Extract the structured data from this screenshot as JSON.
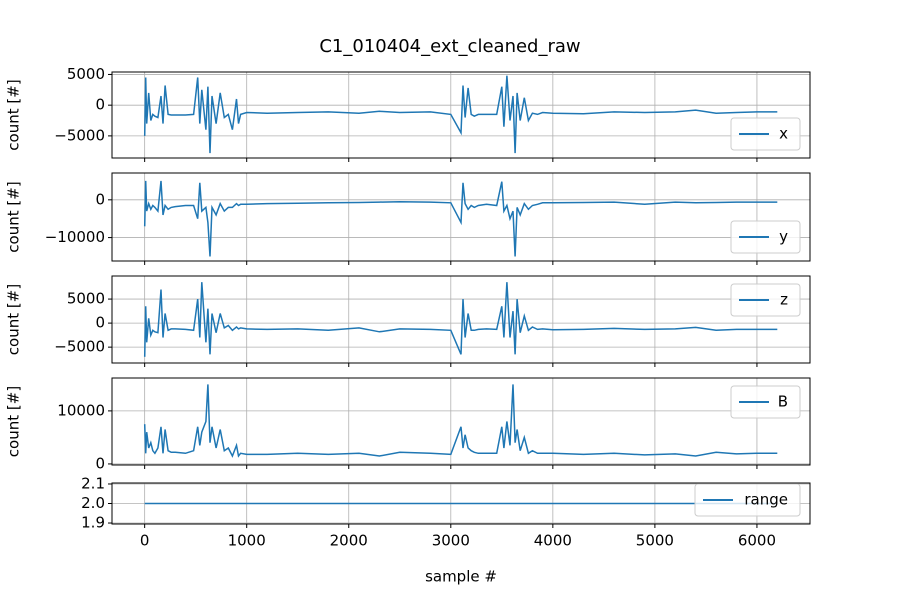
{
  "title": "C1_010404_ext_cleaned_raw",
  "xlabel": "sample #",
  "chart_data": [
    {
      "type": "line",
      "ylabel": "count [#]",
      "legend": "lower right",
      "grid": true,
      "xlim": [
        -320,
        6520
      ],
      "xticks": [
        0,
        1000,
        2000,
        3000,
        4000,
        5000,
        6000
      ],
      "ylim": [
        -8600,
        5400
      ],
      "yticks": [
        {
          "value": -5000,
          "label": "−5000"
        },
        0,
        5000
      ],
      "x": [
        0,
        10,
        20,
        40,
        60,
        80,
        100,
        130,
        160,
        180,
        200,
        230,
        260,
        300,
        400,
        480,
        520,
        540,
        560,
        600,
        620,
        640,
        660,
        700,
        740,
        780,
        820,
        860,
        900,
        920,
        940,
        1000,
        1200,
        1500,
        1800,
        2100,
        2300,
        2500,
        2800,
        3000,
        3100,
        3120,
        3140,
        3170,
        3200,
        3230,
        3270,
        3350,
        3450,
        3500,
        3520,
        3550,
        3580,
        3610,
        3630,
        3650,
        3680,
        3720,
        3760,
        3800,
        3850,
        3900,
        4000,
        4300,
        4600,
        4900,
        5200,
        5400,
        5600,
        5800,
        6000,
        6200
      ],
      "series": [
        {
          "name": "x",
          "color": "#1f77b4",
          "values": [
            -5000,
            4500,
            -3000,
            2000,
            -2500,
            -1500,
            -1800,
            -2000,
            1500,
            -3000,
            3200,
            -1500,
            -1600,
            -1600,
            -1600,
            -1500,
            4500,
            -3000,
            2500,
            -4000,
            3000,
            -7800,
            1500,
            -3000,
            2000,
            -2000,
            -1500,
            -4000,
            1000,
            -3000,
            -1500,
            -1200,
            -1300,
            -1200,
            -1100,
            -1300,
            -1000,
            -1200,
            -1100,
            -1500,
            -4500,
            3200,
            -2000,
            2800,
            -1500,
            -1800,
            -1500,
            -1500,
            -1500,
            3000,
            -3500,
            4800,
            -2500,
            1500,
            -7800,
            2000,
            -2500,
            1200,
            -2500,
            -1300,
            -1500,
            -1200,
            -1300,
            -1400,
            -1100,
            -1200,
            -1100,
            -800,
            -1300,
            -1200,
            -1100,
            -1100
          ]
        }
      ]
    },
    {
      "type": "line",
      "ylabel": "count [#]",
      "legend": "lower right",
      "grid": true,
      "xlim": [
        -320,
        6520
      ],
      "xticks": [
        0,
        1000,
        2000,
        3000,
        4000,
        5000,
        6000
      ],
      "ylim": [
        -16200,
        7100
      ],
      "yticks": [
        {
          "value": -10000,
          "label": "−10000"
        },
        0
      ],
      "x": [
        0,
        10,
        20,
        40,
        60,
        80,
        100,
        130,
        160,
        180,
        200,
        230,
        260,
        300,
        400,
        480,
        520,
        540,
        560,
        600,
        620,
        640,
        660,
        700,
        740,
        780,
        820,
        860,
        900,
        920,
        940,
        1000,
        1200,
        1500,
        1800,
        2100,
        2300,
        2500,
        2800,
        3000,
        3100,
        3120,
        3140,
        3170,
        3200,
        3230,
        3270,
        3350,
        3450,
        3500,
        3520,
        3550,
        3580,
        3610,
        3630,
        3650,
        3680,
        3720,
        3760,
        3800,
        3850,
        3900,
        4000,
        4300,
        4600,
        4900,
        5200,
        5400,
        5600,
        5800,
        6000,
        6200
      ],
      "series": [
        {
          "name": "y",
          "color": "#1f77b4",
          "values": [
            -7000,
            5000,
            -3000,
            -1000,
            -2500,
            -1500,
            -2000,
            -3000,
            5000,
            -4000,
            -1500,
            -2500,
            -2000,
            -1800,
            -1500,
            -1500,
            -5000,
            4500,
            -3000,
            -2000,
            -6000,
            -15000,
            -2000,
            -4000,
            -1000,
            -3000,
            -2000,
            -2000,
            -1000,
            -1500,
            -1200,
            -1200,
            -1000,
            -900,
            -800,
            -700,
            -600,
            -500,
            -600,
            -800,
            -6000,
            4500,
            -1000,
            -2500,
            -1500,
            -2000,
            -1500,
            -1200,
            -1500,
            4800,
            -3000,
            -1500,
            -5000,
            -3000,
            -15000,
            -2000,
            -4000,
            -1000,
            -2500,
            -1500,
            -1200,
            -800,
            -800,
            -700,
            -600,
            -1200,
            -600,
            -800,
            -700,
            -600,
            -600,
            -600
          ]
        }
      ]
    },
    {
      "type": "line",
      "ylabel": "count [#]",
      "legend": "upper right",
      "grid": true,
      "xlim": [
        -320,
        6520
      ],
      "xticks": [
        0,
        1000,
        2000,
        3000,
        4000,
        5000,
        6000
      ],
      "ylim": [
        -8300,
        9800
      ],
      "yticks": [
        {
          "value": -5000,
          "label": "−5000"
        },
        0,
        5000
      ],
      "x": [
        0,
        10,
        20,
        40,
        60,
        80,
        100,
        130,
        160,
        180,
        200,
        230,
        260,
        300,
        400,
        480,
        520,
        540,
        560,
        600,
        620,
        640,
        660,
        700,
        740,
        780,
        820,
        860,
        900,
        920,
        940,
        1000,
        1200,
        1500,
        1800,
        2100,
        2300,
        2500,
        2800,
        3000,
        3100,
        3120,
        3140,
        3170,
        3200,
        3230,
        3270,
        3350,
        3450,
        3500,
        3520,
        3550,
        3580,
        3610,
        3630,
        3650,
        3680,
        3720,
        3760,
        3800,
        3850,
        3900,
        4000,
        4300,
        4600,
        4900,
        5200,
        5400,
        5600,
        5800,
        6000,
        6200
      ],
      "series": [
        {
          "name": "z",
          "color": "#1f77b4",
          "values": [
            -7000,
            3500,
            -4000,
            1000,
            -2500,
            -1500,
            -1800,
            -2000,
            7000,
            -3000,
            2000,
            -1500,
            -1200,
            -1200,
            -1300,
            -1500,
            5000,
            -3000,
            8500,
            -4000,
            3000,
            -6500,
            2000,
            -2000,
            2000,
            -1000,
            -500,
            -1500,
            -800,
            -1200,
            -1000,
            -1200,
            -1300,
            -1200,
            -1500,
            -1000,
            -1800,
            -1200,
            -1300,
            -1500,
            -6500,
            5000,
            -3000,
            2000,
            -1500,
            -1500,
            -1300,
            -1200,
            -1300,
            3500,
            -3000,
            8500,
            -3000,
            2500,
            -6500,
            5000,
            -2000,
            1500,
            -1500,
            -800,
            -1300,
            -1200,
            -1400,
            -1300,
            -1100,
            -1300,
            -1200,
            -900,
            -1500,
            -1300,
            -1300,
            -1300
          ]
        }
      ]
    },
    {
      "type": "line",
      "ylabel": "count [#]",
      "legend": "upper right",
      "grid": true,
      "xlim": [
        -320,
        6520
      ],
      "xticks": [
        0,
        1000,
        2000,
        3000,
        4000,
        5000,
        6000
      ],
      "ylim": [
        -200,
        16200
      ],
      "yticks": [
        0,
        10000
      ],
      "x": [
        0,
        10,
        20,
        40,
        60,
        80,
        100,
        130,
        160,
        180,
        200,
        230,
        260,
        300,
        400,
        480,
        520,
        540,
        560,
        600,
        620,
        640,
        660,
        700,
        740,
        780,
        820,
        860,
        900,
        920,
        940,
        1000,
        1200,
        1500,
        1800,
        2100,
        2300,
        2500,
        2800,
        3000,
        3100,
        3120,
        3140,
        3170,
        3200,
        3230,
        3270,
        3350,
        3450,
        3500,
        3520,
        3550,
        3580,
        3610,
        3630,
        3650,
        3680,
        3720,
        3760,
        3800,
        3850,
        3900,
        4000,
        4300,
        4600,
        4900,
        5200,
        5400,
        5600,
        5800,
        6000,
        6200
      ],
      "series": [
        {
          "name": "B",
          "color": "#1f77b4",
          "values": [
            7500,
            2000,
            6000,
            3000,
            4000,
            2500,
            2000,
            3000,
            7000,
            2000,
            6500,
            2500,
            2200,
            2200,
            2000,
            2500,
            7000,
            3500,
            6000,
            8000,
            15000,
            4000,
            7000,
            3000,
            6500,
            2500,
            3000,
            1500,
            3500,
            1500,
            2000,
            1800,
            1800,
            2000,
            1800,
            2000,
            1500,
            2200,
            2000,
            1800,
            7000,
            3000,
            5500,
            3000,
            2500,
            2200,
            2000,
            2000,
            2000,
            7000,
            3000,
            8000,
            3500,
            15000,
            4000,
            6500,
            2500,
            5000,
            2000,
            2500,
            2000,
            2000,
            2000,
            1800,
            2000,
            1700,
            1900,
            1500,
            2200,
            1900,
            2000,
            2000
          ]
        }
      ]
    },
    {
      "type": "line",
      "legend": "lower right",
      "grid": true,
      "xlim": [
        -320,
        6520
      ],
      "xticks": [
        0,
        1000,
        2000,
        3000,
        4000,
        5000,
        6000
      ],
      "ylim": [
        1.895,
        2.105
      ],
      "yticks": [
        1.9,
        {
          "value": 2,
          "label": "2.0"
        },
        2.1
      ],
      "x": [
        0,
        6200
      ],
      "series": [
        {
          "name": "range",
          "color": "#1f77b4",
          "values": [
            2,
            2
          ]
        }
      ]
    }
  ]
}
